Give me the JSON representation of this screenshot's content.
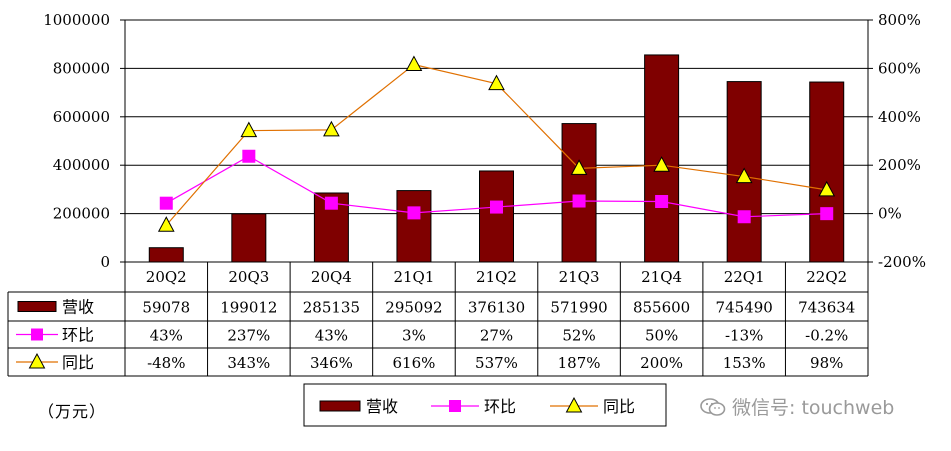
{
  "chart_data": {
    "type": "bar+line",
    "categories": [
      "20Q2",
      "20Q3",
      "20Q4",
      "21Q1",
      "21Q2",
      "21Q3",
      "21Q4",
      "22Q1",
      "22Q2"
    ],
    "series": [
      {
        "name": "营收",
        "kind": "bar",
        "axis": "left",
        "color": "#7f0000",
        "values": [
          59078,
          199012,
          285135,
          295092,
          376130,
          571990,
          855600,
          745490,
          743634
        ],
        "labels": [
          "59078",
          "199012",
          "285135",
          "295092",
          "376130",
          "571990",
          "855600",
          "745490",
          "743634"
        ]
      },
      {
        "name": "环比",
        "kind": "line",
        "axis": "right",
        "color": "#ff00ff",
        "marker": "square",
        "values": [
          43,
          237,
          43,
          3,
          27,
          52,
          50,
          -13,
          -0.2
        ],
        "labels": [
          "43%",
          "237%",
          "43%",
          "3%",
          "27%",
          "52%",
          "50%",
          "-13%",
          "-0.2%"
        ]
      },
      {
        "name": "同比",
        "kind": "line",
        "axis": "right",
        "color": "#e07000",
        "marker": "triangle",
        "marker_color": "#ffff00",
        "values": [
          -48,
          343,
          346,
          616,
          537,
          187,
          200,
          153,
          98
        ],
        "labels": [
          "-48%",
          "343%",
          "346%",
          "616%",
          "537%",
          "187%",
          "200%",
          "153%",
          "98%"
        ]
      }
    ],
    "y_left": {
      "min": 0,
      "max": 1000000,
      "ticks": [
        "0",
        "200000",
        "400000",
        "600000",
        "800000",
        "1000000"
      ]
    },
    "y_right": {
      "min": -200,
      "max": 800,
      "ticks": [
        "-200%",
        "0%",
        "200%",
        "400%",
        "600%",
        "800%"
      ]
    },
    "unit_label": "（万元）",
    "legend": [
      "营收",
      "环比",
      "同比"
    ],
    "legend_position": "bottom-center",
    "watermark": "微信号: touchweb"
  }
}
